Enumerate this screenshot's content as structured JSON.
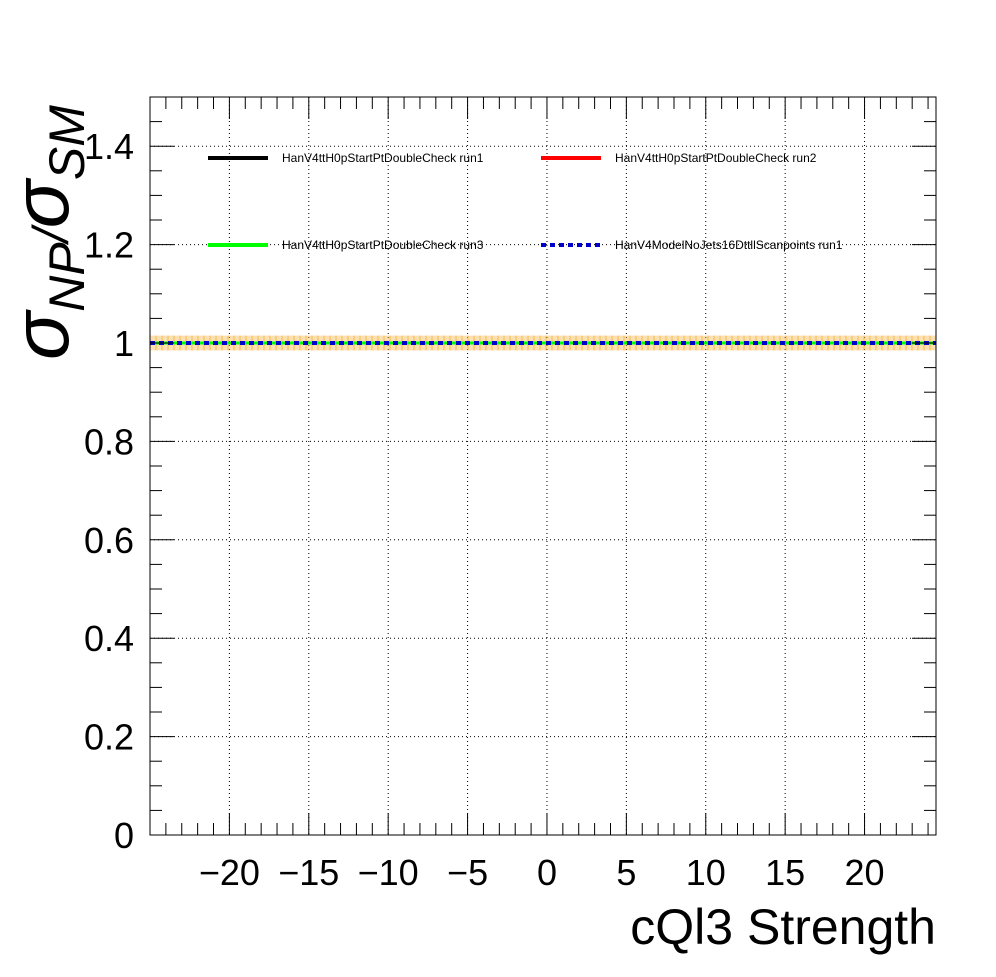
{
  "chart_data": {
    "type": "line",
    "title": "",
    "xlabel": "cQl3 Strength",
    "ylabel": {
      "numerator_symbol": "σ",
      "numerator_subscript": "NP",
      "separator": "/",
      "denominator_symbol": "σ",
      "denominator_subscript": "SM"
    },
    "xlim": [
      -25,
      24.5
    ],
    "ylim": [
      0,
      1.5
    ],
    "x_ticks": [
      -20,
      -15,
      -10,
      -5,
      0,
      5,
      10,
      15,
      20
    ],
    "x_tick_labels": [
      "−20",
      "−15",
      "−10",
      "−5",
      "0",
      "5",
      "10",
      "15",
      "20"
    ],
    "y_ticks": [
      0,
      0.2,
      0.4,
      0.6,
      0.8,
      1,
      1.2,
      1.4
    ],
    "y_tick_labels": [
      "0",
      "0.2",
      "0.4",
      "0.6",
      "0.8",
      "1",
      "1.2",
      "1.4"
    ],
    "x_minor_step": 1,
    "y_minor_step": 0.05,
    "grid": true,
    "grid_style": "dotted",
    "legend_position": "top",
    "x": [
      -25,
      24.5
    ],
    "series": [
      {
        "name": "HanV4ttH0pStartPtDoubleCheck run1",
        "values": [
          1,
          1
        ],
        "color": "#000000",
        "style": "solid"
      },
      {
        "name": "HanV4ttH0pStartPtDoubleCheck run2",
        "values": [
          1,
          1
        ],
        "color": "#ff0000",
        "style": "solid"
      },
      {
        "name": "HanV4ttH0pStartPtDoubleCheck run3",
        "values": [
          1,
          1
        ],
        "color": "#00ff00",
        "style": "solid"
      },
      {
        "name": "HanV4ModelNoJets16DttllScanpoints run1",
        "values": [
          1,
          1
        ],
        "color": "#0000cc",
        "style": "dashed"
      }
    ],
    "error_band": {
      "color": "#f5a623",
      "low": 0.985,
      "high": 1.015
    }
  }
}
